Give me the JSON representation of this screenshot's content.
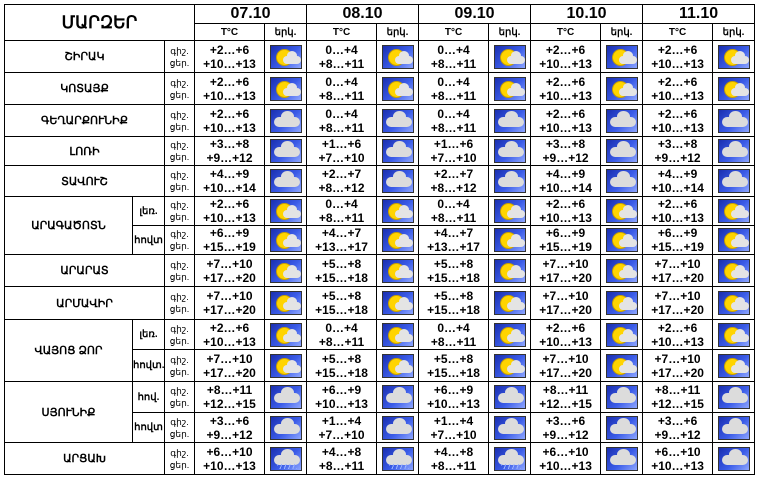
{
  "title": "ՄԱՐԶԵՐ",
  "dates": [
    "07.10",
    "08.10",
    "09.10",
    "10.10",
    "11.10"
  ],
  "temp_header": "T°C",
  "weather_header": "երկ.",
  "row_labels": {
    "day": "ցեր.",
    "night": "գիշ."
  },
  "regions": [
    {
      "name": "ՇԻՐԱԿ",
      "sub": null,
      "night": [
        "+2…+6",
        "0…+4",
        "0…+4",
        "+2…+6",
        "+2…+6"
      ],
      "day": [
        "+10…+13",
        "+8…+11",
        "+8…+11",
        "+10…+13",
        "+10…+13"
      ],
      "icons": [
        "partly-cloudy-icon",
        "partly-cloudy-icon",
        "partly-cloudy-icon",
        "partly-cloudy-icon",
        "partly-cloudy-icon"
      ]
    },
    {
      "name": "ԿՈՏԱՅՔ",
      "sub": null,
      "night": [
        "+2…+6",
        "0…+4",
        "0…+4",
        "+2…+6",
        "+2…+6"
      ],
      "day": [
        "+10…+13",
        "+8…+11",
        "+8…+11",
        "+10…+13",
        "+10…+13"
      ],
      "icons": [
        "partly-cloudy-icon",
        "partly-cloudy-icon",
        "partly-cloudy-icon",
        "partly-cloudy-icon",
        "partly-cloudy-icon"
      ]
    },
    {
      "name": "ԳԵՂԱՐՔՈՒՆԻՔ",
      "sub": null,
      "night": [
        "+2…+6",
        "0…+4",
        "0…+4",
        "+2…+6",
        "+2…+6"
      ],
      "day": [
        "+10…+13",
        "+8…+11",
        "+8…+11",
        "+10…+13",
        "+10…+13"
      ],
      "icons": [
        "overcast-icon",
        "overcast-icon",
        "overcast-icon",
        "overcast-icon",
        "overcast-icon"
      ]
    },
    {
      "name": "ԼՈՌԻ",
      "sub": null,
      "night": [
        "+3…+8",
        "+1…+6",
        "+1…+6",
        "+3…+8",
        "+3…+8"
      ],
      "day": [
        "+9…+12",
        "+7…+10",
        "+7…+10",
        "+9…+12",
        "+9…+12"
      ],
      "icons": [
        "overcast-icon",
        "overcast-icon",
        "overcast-icon",
        "overcast-icon",
        "overcast-icon"
      ]
    },
    {
      "name": "ՏԱՎՈՒՇ",
      "sub": null,
      "night": [
        "+4…+9",
        "+2…+7",
        "+2…+7",
        "+4…+9",
        "+4…+9"
      ],
      "day": [
        "+10…+14",
        "+8…+12",
        "+8…+12",
        "+10…+14",
        "+10…+14"
      ],
      "icons": [
        "overcast-icon",
        "overcast-icon",
        "overcast-icon",
        "overcast-icon",
        "overcast-icon"
      ]
    },
    {
      "name": "ԱՐԱԳԱԾՈՏՆ",
      "sub": "լեռ.",
      "night": [
        "+2…+6",
        "0…+4",
        "0…+4",
        "+2…+6",
        "+2…+6"
      ],
      "day": [
        "+10…+13",
        "+8…+11",
        "+8…+11",
        "+10…+13",
        "+10…+13"
      ],
      "icons": [
        "partly-cloudy-icon",
        "partly-cloudy-icon",
        "partly-cloudy-icon",
        "partly-cloudy-icon",
        "partly-cloudy-icon"
      ]
    },
    {
      "name": "ԱՐԱԳԱԾՈՏՆ",
      "sub": "հովտ",
      "night": [
        "+6…+9",
        "+4…+7",
        "+4…+7",
        "+6…+9",
        "+6…+9"
      ],
      "day": [
        "+15…+19",
        "+13…+17",
        "+13…+17",
        "+15…+19",
        "+15…+19"
      ],
      "icons": [
        "partly-cloudy-icon",
        "partly-cloudy-icon",
        "partly-cloudy-icon",
        "partly-cloudy-icon",
        "partly-cloudy-icon"
      ]
    },
    {
      "name": "ԱՐԱՐԱՏ",
      "sub": null,
      "night": [
        "+7…+10",
        "+5…+8",
        "+5…+8",
        "+7…+10",
        "+7…+10"
      ],
      "day": [
        "+17…+20",
        "+15…+18",
        "+15…+18",
        "+17…+20",
        "+17…+20"
      ],
      "icons": [
        "partly-cloudy-icon",
        "partly-cloudy-icon",
        "partly-cloudy-icon",
        "partly-cloudy-icon",
        "partly-cloudy-icon"
      ]
    },
    {
      "name": "ԱՐՄԱՎԻՐ",
      "sub": null,
      "night": [
        "+7…+10",
        "+5…+8",
        "+5…+8",
        "+7…+10",
        "+7…+10"
      ],
      "day": [
        "+17…+20",
        "+15…+18",
        "+15…+18",
        "+17…+20",
        "+17…+20"
      ],
      "icons": [
        "partly-cloudy-icon",
        "partly-cloudy-icon",
        "partly-cloudy-icon",
        "partly-cloudy-icon",
        "partly-cloudy-icon"
      ]
    },
    {
      "name": "ՎԱՅՈՑ ՁՈՐ",
      "sub": "լեռ.",
      "night": [
        "+2…+6",
        "0…+4",
        "0…+4",
        "+2…+6",
        "+2…+6"
      ],
      "day": [
        "+10…+13",
        "+8…+11",
        "+8…+11",
        "+10…+13",
        "+10…+13"
      ],
      "icons": [
        "partly-cloudy-icon",
        "partly-cloudy-icon",
        "partly-cloudy-icon",
        "partly-cloudy-icon",
        "partly-cloudy-icon"
      ]
    },
    {
      "name": "ՎԱՅՈՑ ՁՈՐ",
      "sub": "հովտ.",
      "night": [
        "+7…+10",
        "+5…+8",
        "+5…+8",
        "+7…+10",
        "+7…+10"
      ],
      "day": [
        "+17…+20",
        "+15…+18",
        "+15…+18",
        "+17…+20",
        "+17…+20"
      ],
      "icons": [
        "partly-cloudy-icon",
        "partly-cloudy-icon",
        "partly-cloudy-icon",
        "partly-cloudy-icon",
        "partly-cloudy-icon"
      ]
    },
    {
      "name": "ՍՅՈՒՆԻՔ",
      "sub": "հով.",
      "night": [
        "+8…+11",
        "+6…+9",
        "+6…+9",
        "+8…+11",
        "+8…+11"
      ],
      "day": [
        "+12…+15",
        "+10…+13",
        "+10…+13",
        "+12…+15",
        "+12…+15"
      ],
      "icons": [
        "overcast-icon",
        "overcast-icon",
        "overcast-icon",
        "overcast-icon",
        "overcast-icon"
      ]
    },
    {
      "name": "ՍՅՈՒՆԻՔ",
      "sub": "հովտ",
      "night": [
        "+3…+6",
        "+1…+4",
        "+1…+4",
        "+3…+6",
        "+3…+6"
      ],
      "day": [
        "+9…+12",
        "+7…+10",
        "+7…+10",
        "+9…+12",
        "+9…+12"
      ],
      "icons": [
        "overcast-icon",
        "overcast-icon",
        "overcast-icon",
        "overcast-icon",
        "overcast-icon"
      ]
    },
    {
      "name": "ԱՐՑԱԽ",
      "sub": null,
      "night": [
        "+6…+10",
        "+4…+8",
        "+4…+8",
        "+6…+10",
        "+6…+10"
      ],
      "day": [
        "+10…+13",
        "+8…+11",
        "+8…+11",
        "+10…+13",
        "+10…+13"
      ],
      "icons": [
        "rain-icon",
        "rain-icon",
        "rain-icon",
        "overcast-icon",
        "overcast-icon"
      ]
    }
  ]
}
